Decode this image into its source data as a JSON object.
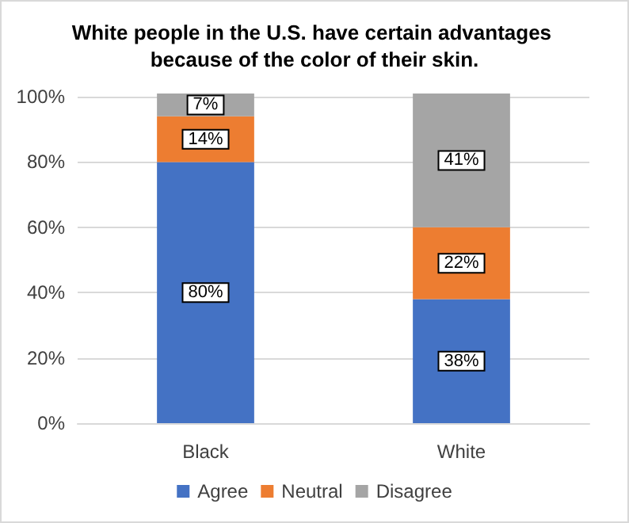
{
  "chart_data": {
    "type": "bar",
    "stacked": true,
    "title": "White people in the U.S. have certain advantages because of the color of their skin.",
    "categories": [
      "Black",
      "White"
    ],
    "series": [
      {
        "name": "Agree",
        "color": "#4472c4",
        "values": [
          80,
          38
        ],
        "value_labels": [
          "80%",
          "38%"
        ]
      },
      {
        "name": "Neutral",
        "color": "#ed7d31",
        "values": [
          14,
          22
        ],
        "value_labels": [
          "14%",
          "22%"
        ]
      },
      {
        "name": "Disagree",
        "color": "#a5a5a5",
        "values": [
          7,
          41
        ],
        "value_labels": [
          "7%",
          "41%"
        ]
      }
    ],
    "ylim": [
      0,
      101
    ],
    "yticks": [
      {
        "value": 0,
        "label": "0%"
      },
      {
        "value": 20,
        "label": "20%"
      },
      {
        "value": 40,
        "label": "40%"
      },
      {
        "value": 60,
        "label": "60%"
      },
      {
        "value": 80,
        "label": "80%"
      },
      {
        "value": 100,
        "label": "100%"
      }
    ],
    "grid": "y",
    "legend": "bottom"
  }
}
